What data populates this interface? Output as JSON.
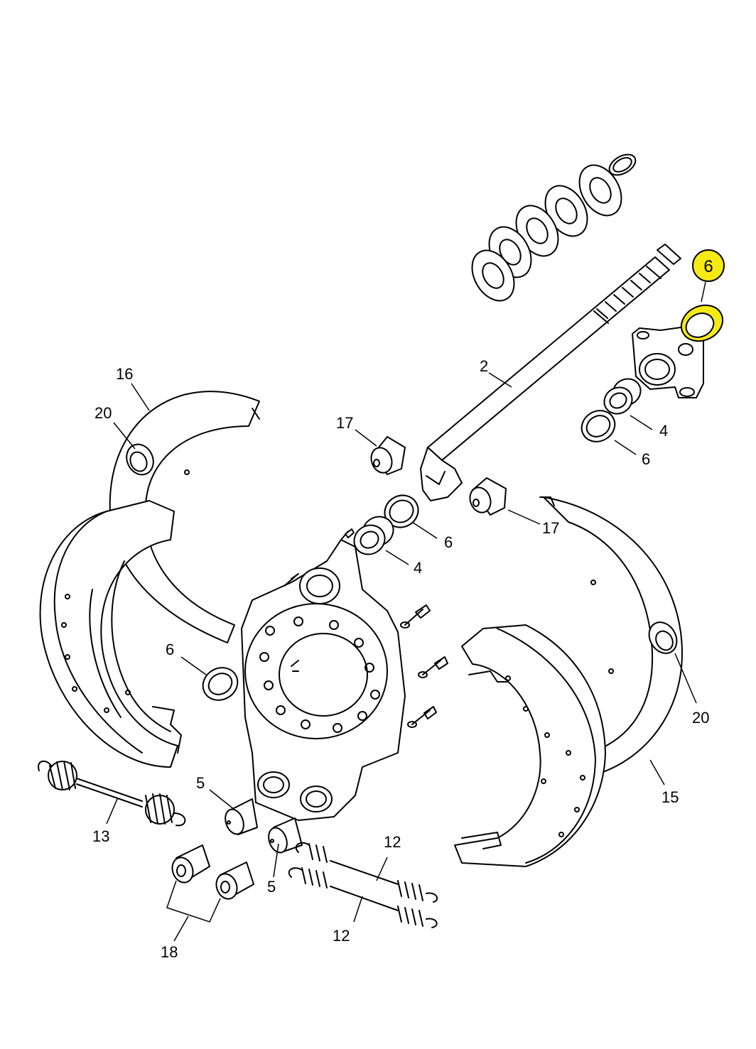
{
  "callouts": {
    "highlight": "6",
    "c2": "2",
    "c4a": "4",
    "c6a": "6",
    "c17a": "17",
    "c17b": "17",
    "c6b": "6",
    "c4b": "4",
    "c16": "16",
    "c20a": "20",
    "c6c": "6",
    "c20b": "20",
    "c15": "15",
    "c5a": "5",
    "c5b": "5",
    "c13": "13",
    "c12a": "12",
    "c12b": "12",
    "c18": "18"
  },
  "colors": {
    "highlight": "#f5ea14",
    "line": "#000000"
  }
}
